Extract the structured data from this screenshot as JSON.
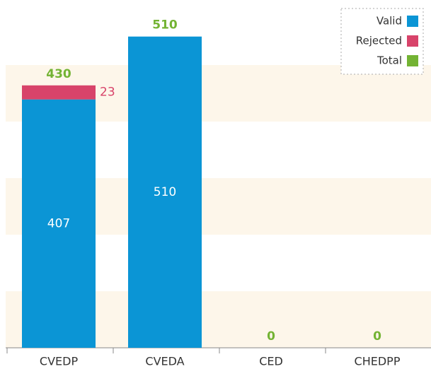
{
  "chart_data": {
    "type": "stacked-bar",
    "categories": [
      "CVEDP",
      "CVEDA",
      "CED",
      "CHEDPP"
    ],
    "series": [
      {
        "name": "Valid",
        "color": "#0b95d5",
        "values": [
          407,
          510,
          0,
          0
        ]
      },
      {
        "name": "Rejected",
        "color": "#d8436a",
        "values": [
          23,
          0,
          0,
          0
        ]
      }
    ],
    "total": {
      "name": "Total",
      "color": "#73b333",
      "values": [
        430,
        510,
        0,
        0
      ]
    },
    "ylim": [
      0,
      556
    ],
    "legend": "top-right"
  }
}
